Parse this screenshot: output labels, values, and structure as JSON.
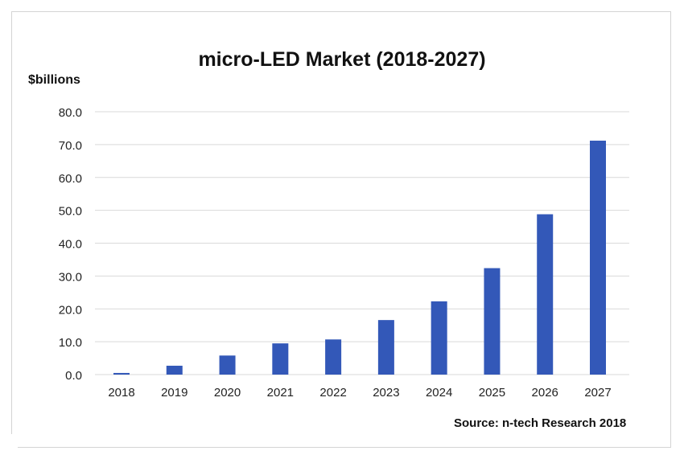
{
  "chart_data": {
    "type": "bar",
    "title": "micro-LED Market (2018-2027)",
    "ylabel": "$billions",
    "xlabel": "",
    "source": "Source: n-tech Research 2018",
    "categories": [
      "2018",
      "2019",
      "2020",
      "2021",
      "2022",
      "2023",
      "2024",
      "2025",
      "2026",
      "2027"
    ],
    "values": [
      0.5,
      2.7,
      5.8,
      9.5,
      10.7,
      16.6,
      22.3,
      32.4,
      48.8,
      71.2
    ],
    "ylim": [
      0,
      80
    ],
    "yticks": [
      "0.0",
      "10.0",
      "20.0",
      "30.0",
      "40.0",
      "50.0",
      "60.0",
      "70.0",
      "80.0"
    ],
    "grid": true,
    "legend": "none",
    "bar_color": "#3358b8"
  }
}
